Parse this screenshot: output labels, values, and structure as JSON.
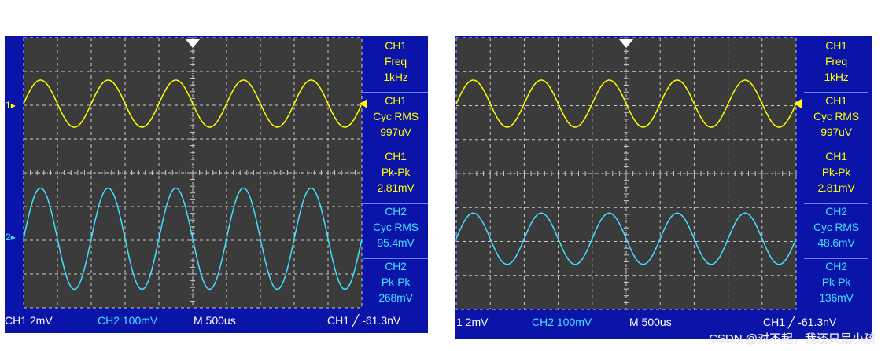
{
  "left": {
    "measurements": [
      {
        "channel": "CH1",
        "label": "Freq",
        "value": "1kHz"
      },
      {
        "channel": "CH1",
        "label": "Cyc RMS",
        "value": "997uV"
      },
      {
        "channel": "CH1",
        "label": "Pk-Pk",
        "value": "2.81mV"
      },
      {
        "channel": "CH2",
        "label": "Cyc RMS",
        "value": "95.4mV"
      },
      {
        "channel": "CH2",
        "label": "Pk-Pk",
        "value": "268mV"
      }
    ],
    "status": {
      "ch1": "CH1 2mV",
      "ch2": "CH2 100mV",
      "time": "M 500us",
      "trigger": "CH1 ╱ -61.3nV"
    },
    "ch1_marker": "1",
    "ch2_marker": "2"
  },
  "right": {
    "measurements": [
      {
        "channel": "CH1",
        "label": "Freq",
        "value": "1kHz"
      },
      {
        "channel": "CH1",
        "label": "Cyc RMS",
        "value": "997uV"
      },
      {
        "channel": "CH1",
        "label": "Pk-Pk",
        "value": "2.81mV"
      },
      {
        "channel": "CH2",
        "label": "Cyc RMS",
        "value": "48.6mV"
      },
      {
        "channel": "CH2",
        "label": "Pk-Pk",
        "value": "136mV"
      }
    ],
    "status": {
      "ch1": "1 2mV",
      "ch2": "CH2 100mV",
      "time": "M 500us",
      "trigger": "CH1 ╱ -61.3nV"
    }
  },
  "watermark": "CSDN @对不起，我还只是小孩",
  "colors": {
    "frame": "#0a14a8",
    "screen": "#3b3b3b",
    "grid": "#c8c8c8",
    "ch1": "#ffff00",
    "ch2": "#40e0ff"
  },
  "waveforms": {
    "cycles": 5,
    "left": {
      "ch2_relative_amplitude": 2.15
    },
    "right": {
      "ch2_relative_amplitude": 1.09
    }
  }
}
